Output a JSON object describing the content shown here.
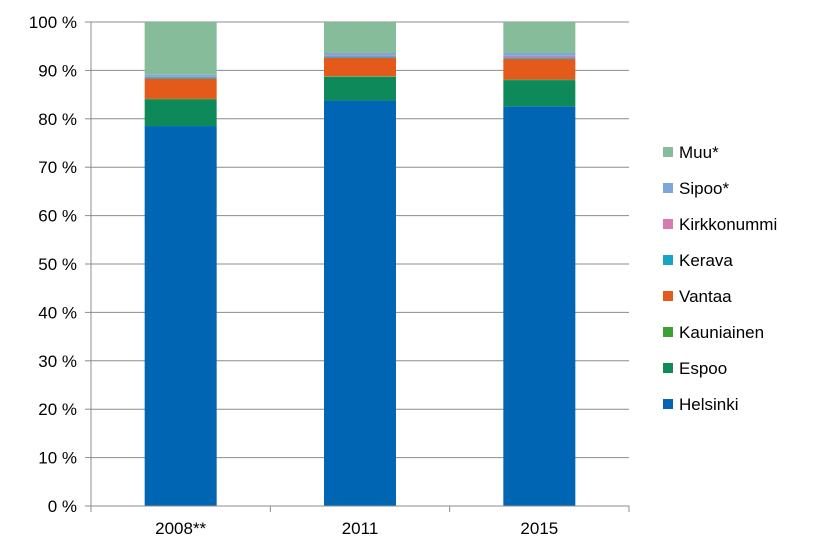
{
  "chart_data": {
    "type": "bar",
    "stacked": true,
    "categories": [
      "2008**",
      "2011",
      "2015"
    ],
    "y_ticks": [
      "0 %",
      "10 %",
      "20 %",
      "30 %",
      "40 %",
      "50 %",
      "60 %",
      "70 %",
      "80 %",
      "90 %",
      "100 %"
    ],
    "ylim": [
      0,
      100
    ],
    "grid": true,
    "legend_position": "right",
    "series": [
      {
        "name": "Helsinki",
        "color": "#0066b3",
        "values": [
          78.5,
          83.8,
          82.6
        ]
      },
      {
        "name": "Espoo",
        "color": "#0e8a5a",
        "values": [
          5.5,
          4.9,
          5.4
        ]
      },
      {
        "name": "Kauniainen",
        "color": "#3aa235",
        "values": [
          0.1,
          0.1,
          0.1
        ]
      },
      {
        "name": "Vantaa",
        "color": "#e35a1a",
        "values": [
          4.2,
          3.8,
          4.3
        ]
      },
      {
        "name": "Kerava",
        "color": "#17a5c5",
        "values": [
          0.3,
          0.3,
          0.3
        ]
      },
      {
        "name": "Kirkkonummi",
        "color": "#d77ab0",
        "values": [
          0.1,
          0.2,
          0.3
        ]
      },
      {
        "name": "Sipoo*",
        "color": "#7fa6d8",
        "values": [
          0.4,
          0.5,
          0.6
        ]
      },
      {
        "name": "Muu*",
        "color": "#87bc9a",
        "values": [
          10.9,
          6.4,
          6.4
        ]
      }
    ]
  }
}
